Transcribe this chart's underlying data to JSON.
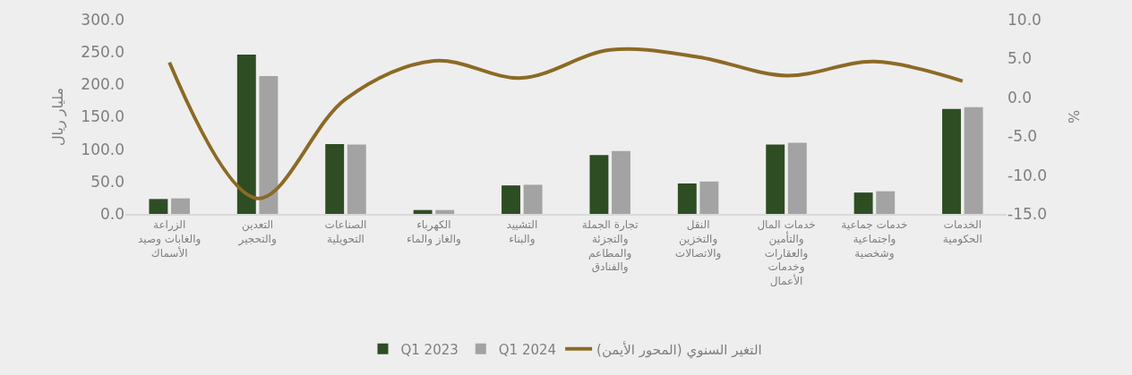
{
  "chart_data": {
    "type": "bar",
    "ylabel": "مليار ريال",
    "y2label": "%",
    "categories": [
      "الزراعة والغابات وصيد الأسماك",
      "التعدين والتحجير",
      "الصناعات التحويلية",
      "الكهرباء والغاز والماء",
      "التشييد والبناء",
      "تجارة الجملة والتجزئة والمطاعم والفنادق",
      "النقل والتخزين والاتصالات",
      "خدمات المال والتأمين والعقارات وخدمات الأعمال",
      "خدمات جماعية واجتماعية وشخصية",
      "الخدمات الحكومية"
    ],
    "series": [
      {
        "name": "Q1 2023",
        "color": "#2e4d23",
        "values": [
          23,
          246,
          108,
          6,
          44,
          91,
          47,
          107,
          33,
          162
        ]
      },
      {
        "name": "Q1 2024",
        "color": "#a3a3a3",
        "values": [
          24,
          213,
          107,
          6,
          45,
          97,
          50,
          110,
          35,
          165
        ]
      },
      {
        "name": "التغير السنوي (المحور الأيمن)",
        "type": "line",
        "axis": "y2",
        "color": "#8c6a26",
        "values": [
          4.5,
          -13,
          -0.2,
          4.7,
          2.5,
          6.1,
          5.2,
          2.8,
          4.6,
          2.1
        ]
      }
    ],
    "ylim": [
      0,
      300
    ],
    "yticks": [
      {
        "value": 0,
        "label": "0.0"
      },
      {
        "value": 50,
        "label": "50.0"
      },
      {
        "value": 100,
        "label": "100.0"
      },
      {
        "value": 150,
        "label": "150.0"
      },
      {
        "value": 200,
        "label": "200.0"
      },
      {
        "value": 250,
        "label": "250.0"
      },
      {
        "value": 300,
        "label": "300.0"
      }
    ],
    "y2lim": [
      -15,
      10
    ],
    "y2ticks": [
      {
        "value": -15,
        "label": "-15.0"
      },
      {
        "value": -10,
        "label": "-10.0"
      },
      {
        "value": -5,
        "label": "-5.0"
      },
      {
        "value": 0,
        "label": "0.0"
      },
      {
        "value": 5,
        "label": "5.0"
      },
      {
        "value": 10,
        "label": "10.0"
      }
    ],
    "grid": false,
    "legend": "bottom"
  }
}
